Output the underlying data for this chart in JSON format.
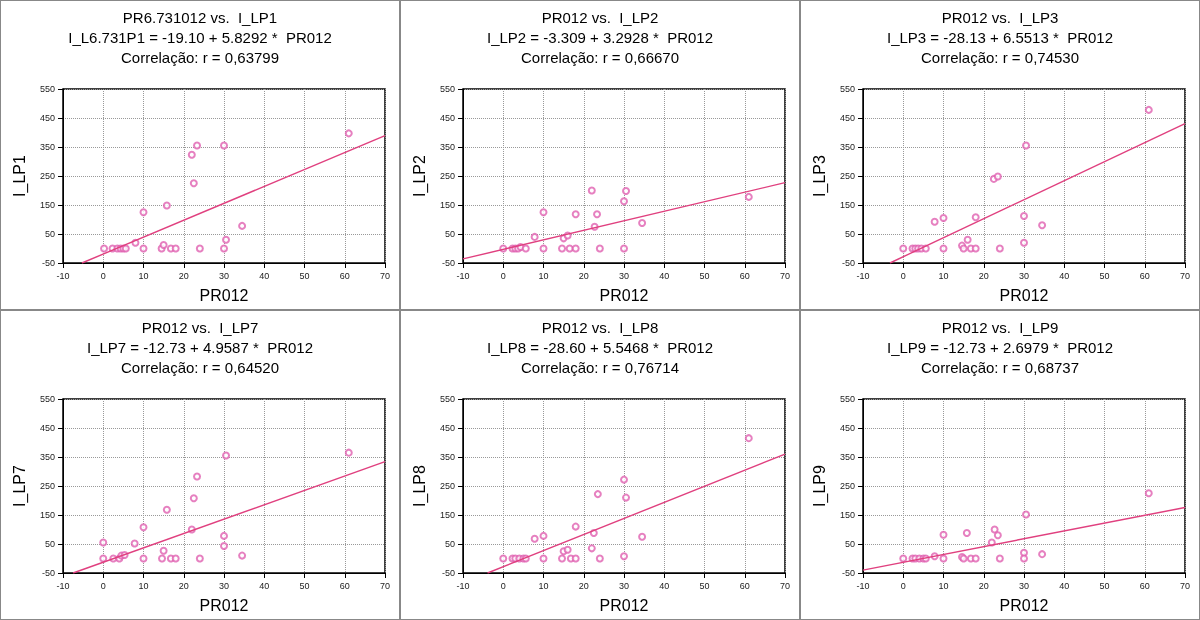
{
  "chart_data": [
    {
      "type": "scatter",
      "title": "PR6.731012 vs.  I_LP1",
      "subtitle": "I_L6.731P1 = -19.10 + 5.8292 *  PR012",
      "annotations": [
        "Correlação: r = 0,63799"
      ],
      "xlabel": "PR012",
      "ylabel": "I_LP1",
      "xlim": [
        -10,
        70
      ],
      "ylim": [
        -50,
        550
      ],
      "xticks": [
        -10,
        0,
        10,
        20,
        30,
        40,
        50,
        60,
        70
      ],
      "yticks": [
        -50,
        50,
        150,
        250,
        350,
        450,
        550
      ],
      "grid": true,
      "marker": "circle",
      "series": [
        {
          "type": "scatter",
          "color": "#e060b0",
          "x": [
            0.2,
            2.3,
            3.5,
            4.3,
            5,
            5.6,
            8,
            10,
            10,
            14.5,
            15,
            15.8,
            16.8,
            18,
            22,
            22.5,
            23.3,
            24,
            30,
            30,
            30.5,
            34.5,
            61
          ],
          "values": [
            0,
            0,
            0,
            0,
            0,
            0,
            20,
            125,
            0,
            0,
            12,
            148,
            0,
            0,
            323,
            225,
            355,
            0,
            355,
            0,
            30,
            78,
            397
          ]
        },
        {
          "type": "line",
          "color": "#e0407f",
          "marker": "none",
          "x": [
            -5.3,
            70
          ],
          "values": [
            -50,
            389
          ]
        }
      ]
    },
    {
      "type": "scatter",
      "title": "PR012 vs.  I_LP2",
      "subtitle": "I_LP2 = -3.309 + 3.2928 *  PR012",
      "annotations": [
        "Correlação: r = 0,66670"
      ],
      "xlabel": "PR012",
      "ylabel": "I_LP2",
      "xlim": [
        -10,
        70
      ],
      "ylim": [
        -50,
        550
      ],
      "xticks": [
        -10,
        0,
        10,
        20,
        30,
        40,
        50,
        60,
        70
      ],
      "yticks": [
        -50,
        50,
        150,
        250,
        350,
        450,
        550
      ],
      "grid": true,
      "marker": "circle",
      "series": [
        {
          "type": "scatter",
          "color": "#e060b0",
          "x": [
            0,
            2.3,
            3,
            3.7,
            4.3,
            5.6,
            7.8,
            10,
            10,
            14.6,
            15,
            16,
            16.5,
            18,
            18,
            22,
            22.7,
            23.3,
            24,
            30,
            30.5,
            30,
            34.5,
            61
          ],
          "values": [
            0,
            0,
            0,
            0,
            5,
            0,
            40,
            125,
            0,
            0,
            35,
            45,
            0,
            118,
            0,
            200,
            75,
            118,
            0,
            163,
            198,
            0,
            88,
            178
          ]
        },
        {
          "type": "line",
          "color": "#e0407f",
          "marker": "none",
          "x": [
            -10,
            70
          ],
          "values": [
            -36,
            227
          ]
        }
      ]
    },
    {
      "type": "scatter",
      "title": "PR012 vs.  I_LP3",
      "subtitle": "I_LP3 = -28.13 + 6.5513 *  PR012",
      "annotations": [
        "Correlação: r = 0,74530"
      ],
      "xlabel": "PR012",
      "ylabel": "I_LP3",
      "xlim": [
        -10,
        70
      ],
      "ylim": [
        -50,
        550
      ],
      "xticks": [
        -10,
        0,
        10,
        20,
        30,
        40,
        50,
        60,
        70
      ],
      "yticks": [
        -50,
        50,
        150,
        250,
        350,
        450,
        550
      ],
      "grid": true,
      "marker": "circle",
      "series": [
        {
          "type": "scatter",
          "color": "#e060b0",
          "x": [
            0,
            2.3,
            3,
            3.7,
            4.5,
            5.6,
            7.8,
            10,
            10,
            14.6,
            15,
            16,
            16.8,
            18,
            18,
            22.5,
            23.5,
            24,
            30,
            30,
            30.5,
            34.5,
            61
          ],
          "values": [
            0,
            0,
            0,
            0,
            0,
            0,
            92,
            105,
            0,
            10,
            0,
            30,
            0,
            0,
            108,
            240,
            248,
            0,
            112,
            20,
            355,
            80,
            478
          ]
        },
        {
          "type": "line",
          "color": "#e0407f",
          "marker": "none",
          "x": [
            -3.3,
            70
          ],
          "values": [
            -50,
            431
          ]
        }
      ]
    },
    {
      "type": "scatter",
      "title": "PR012 vs.  I_LP7",
      "subtitle": "I_LP7 = -12.73 + 4.9587 *  PR012",
      "annotations": [
        "Correlação: r = 0,64520"
      ],
      "xlabel": "PR012",
      "ylabel": "I_LP7",
      "xlim": [
        -10,
        70
      ],
      "ylim": [
        -50,
        550
      ],
      "xticks": [
        -10,
        0,
        10,
        20,
        30,
        40,
        50,
        60,
        70
      ],
      "yticks": [
        -50,
        50,
        150,
        250,
        350,
        450,
        550
      ],
      "grid": true,
      "marker": "circle",
      "series": [
        {
          "type": "scatter",
          "color": "#e060b0",
          "x": [
            0,
            0,
            2.5,
            4,
            4.5,
            5.3,
            7.8,
            10,
            10,
            14.6,
            15,
            15.8,
            16.8,
            18,
            22,
            22.5,
            23.3,
            24,
            30,
            30,
            30.5,
            34.5,
            61
          ],
          "values": [
            55,
            0,
            0,
            0,
            10,
            12,
            52,
            108,
            0,
            0,
            27,
            168,
            0,
            0,
            100,
            208,
            283,
            0,
            78,
            43,
            355,
            10,
            365
          ]
        },
        {
          "type": "line",
          "color": "#e0407f",
          "marker": "none",
          "x": [
            -7.5,
            70
          ],
          "values": [
            -50,
            334
          ]
        }
      ]
    },
    {
      "type": "scatter",
      "title": "PR012 vs.  I_LP8",
      "subtitle": "I_LP8 = -28.60 + 5.5468 *  PR012",
      "annotations": [
        "Correlação: r = 0,76714"
      ],
      "xlabel": "PR012",
      "ylabel": "I_LP8",
      "xlim": [
        -10,
        70
      ],
      "ylim": [
        -50,
        550
      ],
      "xticks": [
        -10,
        0,
        10,
        20,
        30,
        40,
        50,
        60,
        70
      ],
      "yticks": [
        -50,
        50,
        150,
        250,
        350,
        450,
        550
      ],
      "grid": true,
      "marker": "circle",
      "series": [
        {
          "type": "scatter",
          "color": "#e060b0",
          "x": [
            0,
            2.3,
            3,
            4,
            5,
            5.6,
            7.8,
            10,
            10,
            14.6,
            15,
            16,
            16.8,
            18,
            18,
            22,
            22.5,
            23.5,
            24,
            30,
            30,
            30.5,
            34.5,
            61
          ],
          "values": [
            0,
            0,
            0,
            0,
            0,
            0,
            68,
            78,
            0,
            0,
            25,
            30,
            0,
            0,
            110,
            35,
            88,
            222,
            0,
            272,
            8,
            210,
            75,
            415
          ]
        },
        {
          "type": "line",
          "color": "#e0407f",
          "marker": "none",
          "x": [
            -3.9,
            70
          ],
          "values": [
            -50,
            360
          ]
        }
      ]
    },
    {
      "type": "scatter",
      "title": "PR012 vs.  I_LP9",
      "subtitle": "I_LP9 = -12.73 + 2.6979 *  PR012",
      "annotations": [
        "Correlação: r = 0,68737"
      ],
      "xlabel": "PR012",
      "ylabel": "I_LP9",
      "xlim": [
        -10,
        70
      ],
      "ylim": [
        -50,
        550
      ],
      "xticks": [
        -10,
        0,
        10,
        20,
        30,
        40,
        50,
        60,
        70
      ],
      "yticks": [
        -50,
        50,
        150,
        250,
        350,
        450,
        550
      ],
      "grid": true,
      "marker": "circle",
      "series": [
        {
          "type": "scatter",
          "color": "#e060b0",
          "x": [
            0,
            2.3,
            3,
            4,
            5,
            5.6,
            7.8,
            10,
            10,
            14.6,
            15,
            15.8,
            16.8,
            18,
            22,
            22.7,
            23.5,
            24,
            30,
            30,
            30.5,
            34.5,
            61
          ],
          "values": [
            0,
            0,
            0,
            0,
            0,
            0,
            8,
            82,
            0,
            5,
            0,
            88,
            0,
            0,
            55,
            100,
            80,
            0,
            20,
            0,
            152,
            15,
            225
          ]
        },
        {
          "type": "line",
          "color": "#e0407f",
          "marker": "none",
          "x": [
            -10,
            70
          ],
          "values": [
            -40,
            176
          ]
        }
      ]
    }
  ]
}
